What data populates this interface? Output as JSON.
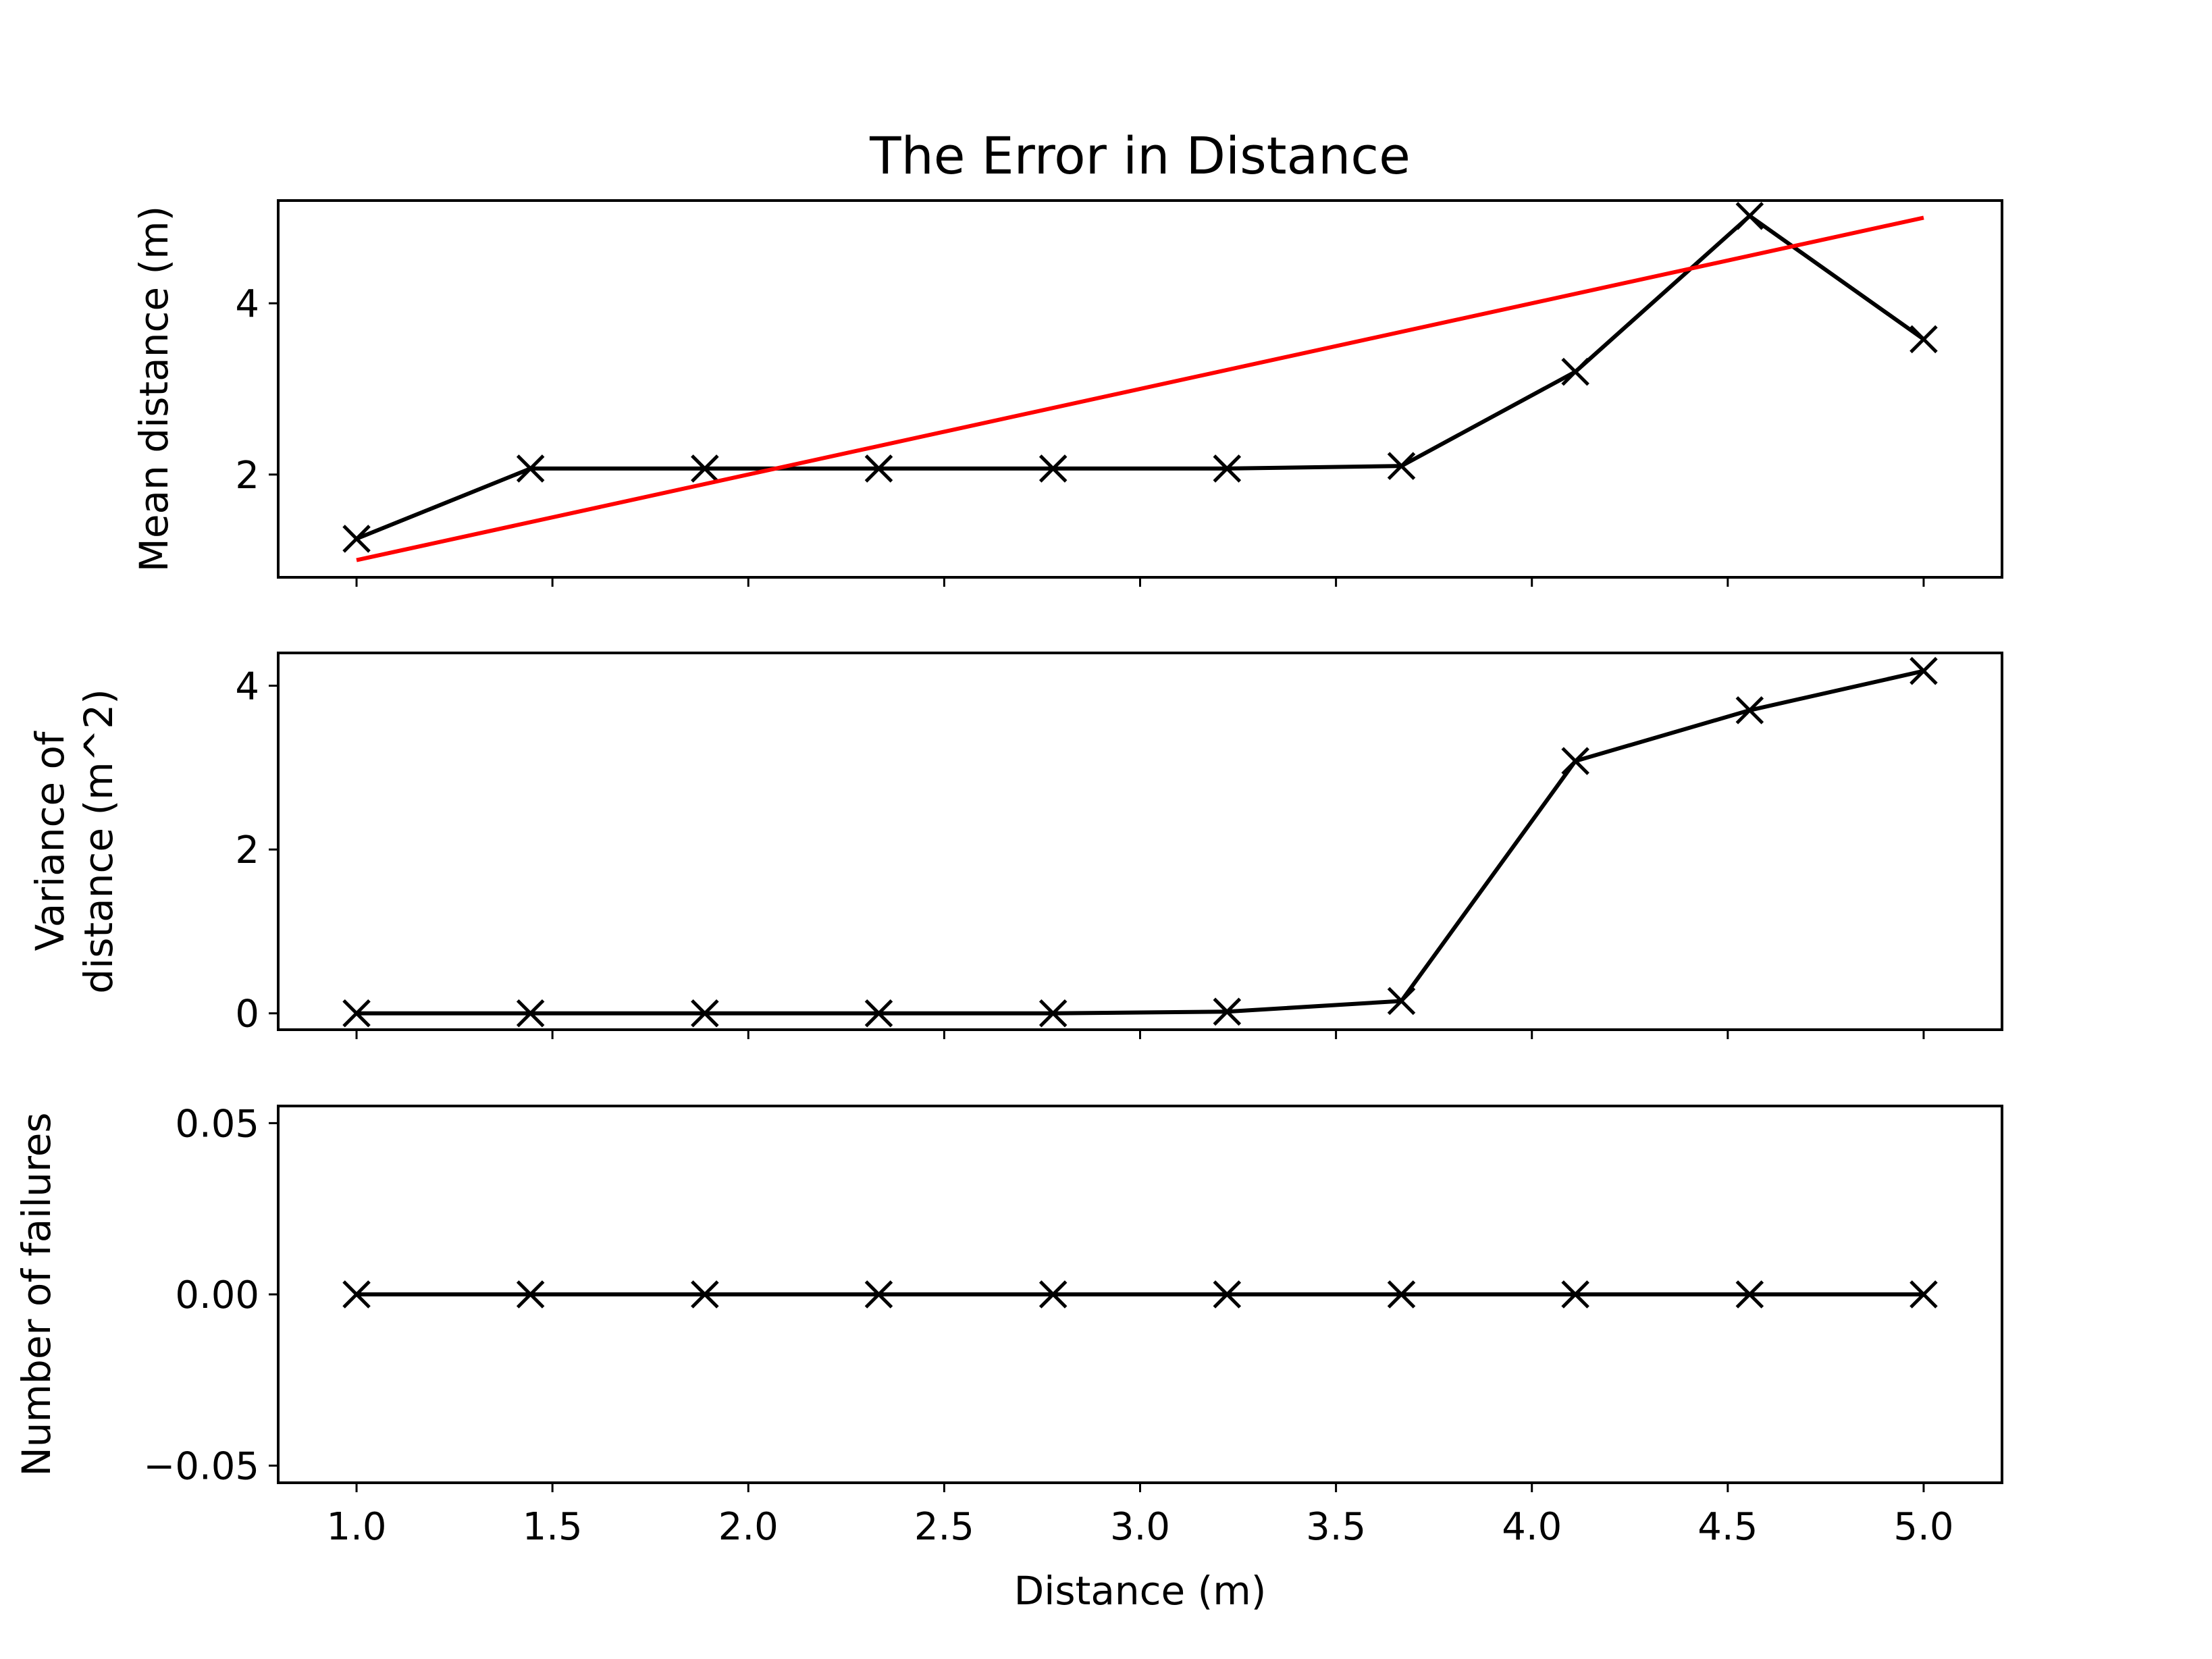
{
  "chart_data": [
    {
      "type": "line",
      "title": "The Error in Distance",
      "xlabel": "",
      "ylabel": "Mean distance (m)",
      "xlim": [
        0.8,
        5.2
      ],
      "ylim": [
        0.8,
        5.2
      ],
      "yticks": [
        2,
        4
      ],
      "ytick_labels": [
        "2",
        "4"
      ],
      "xticks": [
        1.0,
        1.5,
        2.0,
        2.5,
        3.0,
        3.5,
        4.0,
        4.5,
        5.0
      ],
      "xtick_labels": [],
      "series": [
        {
          "color": "#000000",
          "marker": "x",
          "x": [
            1.0,
            1.444,
            1.889,
            2.333,
            2.778,
            3.222,
            3.667,
            4.111,
            4.556,
            5.0
          ],
          "y": [
            1.25,
            2.07,
            2.07,
            2.07,
            2.07,
            2.07,
            2.1,
            3.2,
            5.02,
            3.58
          ]
        },
        {
          "color": "#ff0000",
          "marker": "none",
          "x": [
            1.0,
            5.0
          ],
          "y": [
            1.0,
            5.0
          ]
        }
      ],
      "grid": false,
      "legend": "none"
    },
    {
      "type": "line",
      "title": "",
      "xlabel": "",
      "ylabel": "Variance of\ndistance (m^2)",
      "ylabel_lines": [
        "Variance of",
        "distance (m^2)"
      ],
      "xlim": [
        0.8,
        5.2
      ],
      "ylim": [
        -0.2,
        4.4
      ],
      "yticks": [
        0,
        2,
        4
      ],
      "ytick_labels": [
        "0",
        "2",
        "4"
      ],
      "xticks": [
        1.0,
        1.5,
        2.0,
        2.5,
        3.0,
        3.5,
        4.0,
        4.5,
        5.0
      ],
      "xtick_labels": [],
      "series": [
        {
          "color": "#000000",
          "marker": "x",
          "x": [
            1.0,
            1.444,
            1.889,
            2.333,
            2.778,
            3.222,
            3.667,
            4.111,
            4.556,
            5.0
          ],
          "y": [
            0.0,
            0.0,
            0.0,
            0.0,
            0.0,
            0.02,
            0.15,
            3.08,
            3.7,
            4.18
          ]
        }
      ],
      "grid": false,
      "legend": "none"
    },
    {
      "type": "line",
      "title": "",
      "xlabel": "Distance (m)",
      "ylabel": "Number of failures",
      "xlim": [
        0.8,
        5.2
      ],
      "ylim": [
        -0.055,
        0.055
      ],
      "yticks": [
        -0.05,
        0.0,
        0.05
      ],
      "ytick_labels": [
        "−0.05",
        "0.00",
        "0.05"
      ],
      "xticks": [
        1.0,
        1.5,
        2.0,
        2.5,
        3.0,
        3.5,
        4.0,
        4.5,
        5.0
      ],
      "xtick_labels": [
        "1.0",
        "1.5",
        "2.0",
        "2.5",
        "3.0",
        "3.5",
        "4.0",
        "4.5",
        "5.0"
      ],
      "series": [
        {
          "color": "#000000",
          "marker": "x",
          "x": [
            1.0,
            1.444,
            1.889,
            2.333,
            2.778,
            3.222,
            3.667,
            4.111,
            4.556,
            5.0
          ],
          "y": [
            0,
            0,
            0,
            0,
            0,
            0,
            0,
            0,
            0,
            0
          ]
        }
      ],
      "grid": false,
      "legend": "none"
    }
  ]
}
